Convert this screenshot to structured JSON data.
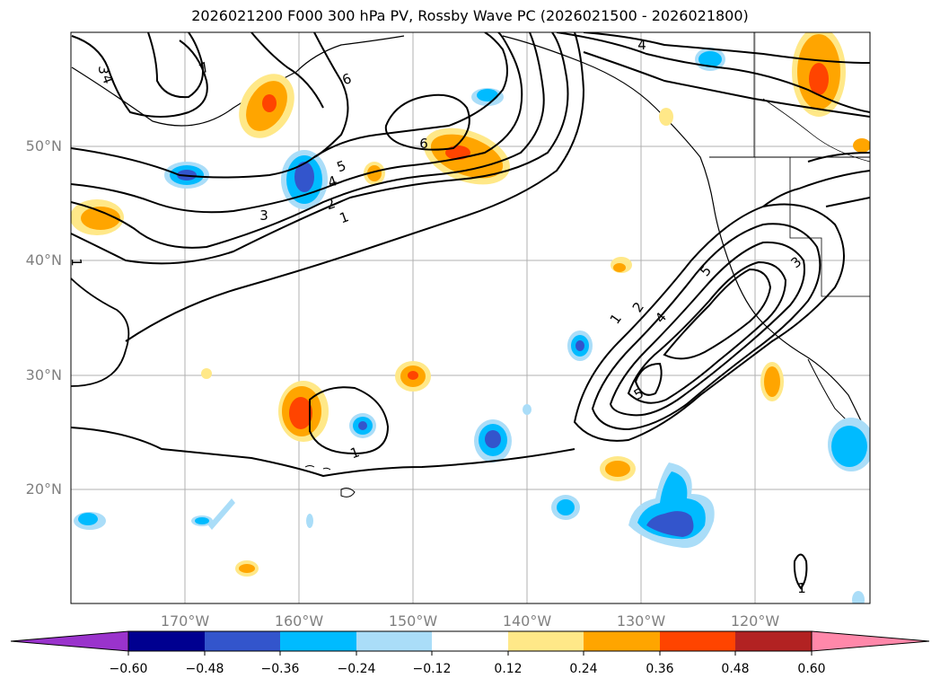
{
  "title": "2026021200 F000 300 hPa PV, Rossby Wave PC (2026021500 - 2026021800)",
  "latitude_labels": [
    "50°N",
    "40°N",
    "30°N",
    "20°N"
  ],
  "longitude_labels": [
    "170°W",
    "160°W",
    "150°W",
    "140°W",
    "130°W",
    "120°W"
  ],
  "colorbar": {
    "tick_labels": [
      "−0.60",
      "−0.48",
      "−0.36",
      "−0.24",
      "−0.12",
      "0.12",
      "0.24",
      "0.36",
      "0.48",
      "0.60"
    ],
    "colors": [
      "#9a33cc",
      "#000090",
      "#3355cc",
      "#00bbff",
      "#aaddf8",
      "#ffffff",
      "#ffe888",
      "#ffa500",
      "#ff4400",
      "#b22222",
      "#ff88aa"
    ]
  },
  "contour_labels": [
    "3",
    "4",
    "7",
    "6",
    "4",
    "6",
    "5",
    "4",
    "3",
    "2",
    "1",
    "1",
    "1",
    "2",
    "4",
    "5",
    "3",
    "5",
    "1",
    "1"
  ],
  "colors": {
    "positive_light": "#ffe888",
    "positive_mid": "#ffa500",
    "positive_strong": "#ff4400",
    "negative_light": "#aaddf8",
    "negative_mid": "#00bbff",
    "negative_strong": "#3355cc"
  }
}
